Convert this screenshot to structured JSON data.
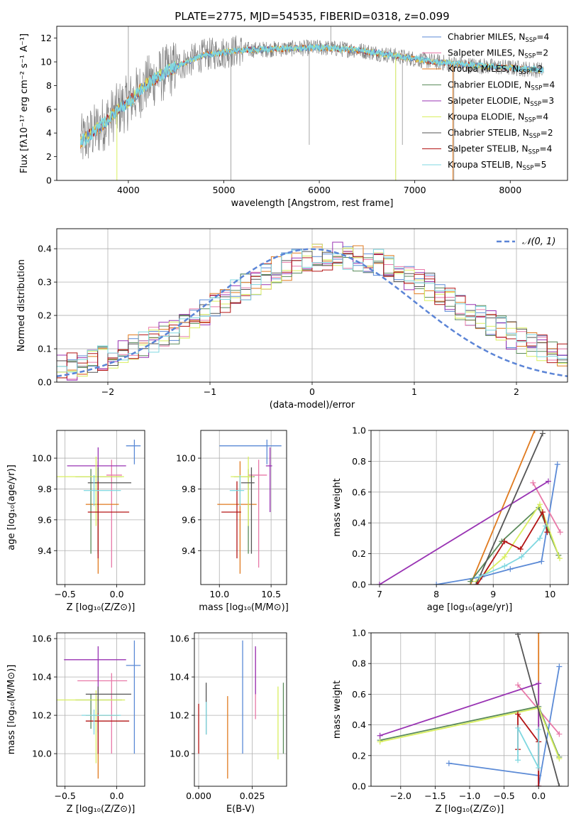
{
  "page": {
    "title": "PLATE=2775, MJD=54535, FIBERID=0318, z=0.099"
  },
  "colors": {
    "chabrier_miles": "#5b8ad6",
    "salpeter_miles": "#e879a8",
    "kroupa_miles": "#e07a1f",
    "chabrier_elodie": "#5a8a5a",
    "salpeter_elodie": "#9933b3",
    "kroupa_elodie": "#d9ef5f",
    "chabrier_stelib": "#555555",
    "salpeter_stelib": "#b31414",
    "kroupa_stelib": "#7fd7e0",
    "data": "#808080",
    "normal": "#5b84d6"
  },
  "chart_data": [
    {
      "id": "spectrum",
      "type": "line",
      "title": "PLATE=2775, MJD=54535, FIBERID=0318, z=0.099",
      "xlabel": "wavelength [Angstrom, rest frame]",
      "ylabel": "Flux [fλ10⁻¹⁷ erg cm⁻² s⁻¹ A⁻¹]",
      "xlim": [
        3250,
        8600
      ],
      "ylim": [
        0,
        13
      ],
      "xticks": [
        4000,
        5000,
        6000,
        7000,
        8000
      ],
      "yticks": [
        0,
        2,
        4,
        6,
        8,
        10,
        12
      ],
      "continuum": [
        [
          3500,
          3.2
        ],
        [
          3700,
          4.5
        ],
        [
          3900,
          6.0
        ],
        [
          4000,
          6.6
        ],
        [
          4200,
          8.2
        ],
        [
          4500,
          9.6
        ],
        [
          4800,
          10.6
        ],
        [
          5200,
          11.0
        ],
        [
          5600,
          11.1
        ],
        [
          6000,
          11.2
        ],
        [
          6400,
          11.0
        ],
        [
          6800,
          10.5
        ],
        [
          7200,
          10.0
        ],
        [
          7600,
          9.7
        ],
        [
          8000,
          9.5
        ],
        [
          8350,
          9.3
        ]
      ],
      "legend": [
        {
          "label": "Chabrier MILES, N",
          "sub": "SSP",
          "suffix": "=4",
          "color_key": "chabrier_miles"
        },
        {
          "label": "Salpeter MILES, N",
          "sub": "SSP",
          "suffix": "=2",
          "color_key": "salpeter_miles"
        },
        {
          "label": "Kroupa MILES, N",
          "sub": "SSP",
          "suffix": "=2",
          "color_key": "kroupa_miles"
        },
        {
          "label": "Chabrier ELODIE, N",
          "sub": "SSP",
          "suffix": "=4",
          "color_key": "chabrier_elodie"
        },
        {
          "label": "Salpeter ELODIE, N",
          "sub": "SSP",
          "suffix": "=3",
          "color_key": "salpeter_elodie"
        },
        {
          "label": "Kroupa ELODIE, N",
          "sub": "SSP",
          "suffix": "=4",
          "color_key": "kroupa_elodie"
        },
        {
          "label": "Chabrier STELIB, N",
          "sub": "SSP",
          "suffix": "=2",
          "color_key": "chabrier_stelib"
        },
        {
          "label": "Salpeter STELIB, N",
          "sub": "SSP",
          "suffix": "=4",
          "color_key": "salpeter_stelib"
        },
        {
          "label": "Kroupa STELIB, N",
          "sub": "SSP",
          "suffix": "=5",
          "color_key": "kroupa_stelib"
        }
      ]
    },
    {
      "id": "residuals",
      "type": "line",
      "xlabel": "(data-model)/error",
      "ylabel": "Normed distribution",
      "xlim": [
        -2.5,
        2.5
      ],
      "ylim": [
        0,
        0.46
      ],
      "xticks": [
        -2,
        -1,
        0,
        1,
        2
      ],
      "yticks": [
        0.0,
        0.1,
        0.2,
        0.3,
        0.4
      ],
      "bin_width": 0.1,
      "legend_label": "𝒩(0, 1)",
      "grid": true
    },
    {
      "id": "age_vs_Z",
      "type": "scatter",
      "xlabel": "Z [log₁₀(Z/Z⊙)]",
      "ylabel": "age  [log₁₀(age/yr)]",
      "xlim": [
        -0.58,
        0.27
      ],
      "ylim": [
        9.18,
        10.18
      ],
      "xticks": [
        -0.5,
        0.0
      ],
      "yticks": [
        9.4,
        9.6,
        9.8,
        10.0
      ],
      "points": [
        {
          "model": "chabrier_miles",
          "x": 0.17,
          "y": 10.08,
          "xerr": [
            0.08,
            0.06
          ],
          "yerr": [
            0.12,
            0.04
          ]
        },
        {
          "model": "salpeter_miles",
          "x": -0.05,
          "y": 9.89,
          "xerr": [
            0.05,
            0.1
          ],
          "yerr": [
            0.6,
            0.1
          ]
        },
        {
          "model": "kroupa_miles",
          "x": -0.18,
          "y": 9.7,
          "xerr": [
            0.12,
            0.2
          ],
          "yerr": [
            0.45,
            0.28
          ]
        },
        {
          "model": "chabrier_elodie",
          "x": -0.25,
          "y": 9.88,
          "xerr": [
            0.15,
            0.3
          ],
          "yerr": [
            0.5,
            0.05
          ]
        },
        {
          "model": "salpeter_elodie",
          "x": -0.18,
          "y": 9.95,
          "xerr": [
            0.3,
            0.27
          ],
          "yerr": [
            0.25,
            0.12
          ]
        },
        {
          "model": "kroupa_elodie",
          "x": -0.2,
          "y": 9.88,
          "xerr": [
            0.38,
            0.27
          ],
          "yerr": [
            0.32,
            0.13
          ]
        },
        {
          "model": "chabrier_stelib",
          "x": -0.18,
          "y": 9.84,
          "xerr": [
            0.1,
            0.32
          ],
          "yerr": [
            0.46,
            0.1
          ]
        },
        {
          "model": "salpeter_stelib",
          "x": -0.18,
          "y": 9.65,
          "xerr": [
            0.1,
            0.3
          ],
          "yerr": [
            0.3,
            0.2
          ]
        },
        {
          "model": "kroupa_stelib",
          "x": -0.22,
          "y": 9.79,
          "xerr": [
            0.1,
            0.26
          ],
          "yerr": [
            0.1,
            0.1
          ]
        }
      ]
    },
    {
      "id": "age_vs_mass",
      "type": "scatter",
      "xlabel": "mass [log₁₀(M/M⊙)]",
      "xlim": [
        9.82,
        10.65
      ],
      "ylim": [
        9.18,
        10.18
      ],
      "xticks": [
        10.0,
        10.5
      ],
      "yticks": [
        9.4,
        9.6,
        9.8,
        10.0
      ],
      "points": [
        {
          "model": "chabrier_miles",
          "x": 10.46,
          "y": 10.08,
          "xerr": [
            0.46,
            0.14
          ],
          "yerr": [
            0.12,
            0.04
          ]
        },
        {
          "model": "salpeter_miles",
          "x": 10.38,
          "y": 9.89,
          "xerr": [
            0.1,
            0.08
          ],
          "yerr": [
            0.6,
            0.1
          ]
        },
        {
          "model": "kroupa_miles",
          "x": 10.2,
          "y": 9.7,
          "xerr": [
            0.22,
            0.16
          ],
          "yerr": [
            0.45,
            0.28
          ]
        },
        {
          "model": "chabrier_elodie",
          "x": 10.28,
          "y": 9.88,
          "xerr": [
            0.14,
            0.06
          ],
          "yerr": [
            0.5,
            0.05
          ]
        },
        {
          "model": "salpeter_elodie",
          "x": 10.49,
          "y": 9.95,
          "xerr": [
            0.04,
            0.02
          ],
          "yerr": [
            0.3,
            0.12
          ]
        },
        {
          "model": "kroupa_elodie",
          "x": 10.28,
          "y": 9.88,
          "xerr": [
            0.17,
            0.05
          ],
          "yerr": [
            0.32,
            0.13
          ]
        },
        {
          "model": "chabrier_stelib",
          "x": 10.31,
          "y": 9.84,
          "xerr": [
            0.1,
            0.03
          ],
          "yerr": [
            0.46,
            0.1
          ]
        },
        {
          "model": "salpeter_stelib",
          "x": 10.17,
          "y": 9.65,
          "xerr": [
            0.15,
            0.04
          ],
          "yerr": [
            0.3,
            0.2
          ]
        },
        {
          "model": "kroupa_stelib",
          "x": 10.2,
          "y": 9.79,
          "xerr": [
            0.1,
            0.04
          ],
          "yerr": [
            0.1,
            0.1
          ]
        }
      ]
    },
    {
      "id": "weight_vs_age",
      "type": "line",
      "xlabel": "age  [log₁₀(age/yr)]",
      "ylabel": "mass weight",
      "xlim": [
        6.85,
        10.32
      ],
      "ylim": [
        0,
        1
      ],
      "xticks": [
        7,
        8,
        9,
        10
      ],
      "yticks": [
        0.0,
        0.2,
        0.4,
        0.6,
        0.8,
        1.0
      ],
      "grid": true,
      "series": [
        {
          "model": "chabrier_miles",
          "points": [
            [
              8.0,
              0.0
            ],
            [
              8.8,
              0.05
            ],
            [
              9.3,
              0.1
            ],
            [
              9.85,
              0.15
            ],
            [
              10.13,
              0.78
            ]
          ]
        },
        {
          "model": "salpeter_miles",
          "points": [
            [
              9.7,
              0.66
            ],
            [
              10.18,
              0.34
            ]
          ]
        },
        {
          "model": "kroupa_miles",
          "points": [
            [
              8.6,
              0.0
            ],
            [
              9.73,
              1.0
            ]
          ]
        },
        {
          "model": "chabrier_elodie",
          "points": [
            [
              8.6,
              0.02
            ],
            [
              9.15,
              0.28
            ],
            [
              9.8,
              0.5
            ],
            [
              10.15,
              0.19
            ]
          ]
        },
        {
          "model": "salpeter_elodie",
          "points": [
            [
              7.0,
              0.0
            ],
            [
              9.97,
              0.67
            ]
          ]
        },
        {
          "model": "kroupa_elodie",
          "points": [
            [
              8.7,
              0.02
            ],
            [
              9.2,
              0.18
            ],
            [
              9.82,
              0.52
            ],
            [
              10.17,
              0.17
            ]
          ]
        },
        {
          "model": "chabrier_stelib",
          "points": [
            [
              8.7,
              0.0
            ],
            [
              9.87,
              0.98
            ]
          ]
        },
        {
          "model": "salpeter_stelib",
          "points": [
            [
              8.72,
              0.0
            ],
            [
              9.2,
              0.28
            ],
            [
              9.48,
              0.23
            ],
            [
              9.87,
              0.47
            ],
            [
              9.95,
              0.34
            ]
          ]
        },
        {
          "model": "kroupa_stelib",
          "points": [
            [
              8.75,
              0.05
            ],
            [
              9.2,
              0.12
            ],
            [
              9.5,
              0.18
            ],
            [
              9.82,
              0.3
            ],
            [
              9.92,
              0.38
            ]
          ]
        }
      ]
    },
    {
      "id": "mass_vs_Z",
      "type": "scatter",
      "xlabel": "Z [log₁₀(Z/Z⊙)]",
      "ylabel": "mass [log₁₀(M/M⊙)]",
      "xlim": [
        -0.58,
        0.27
      ],
      "ylim": [
        9.83,
        10.63
      ],
      "xticks": [
        -0.5,
        0.0
      ],
      "yticks": [
        10.0,
        10.2,
        10.4,
        10.6
      ],
      "points": [
        {
          "model": "chabrier_miles",
          "x": 0.17,
          "y": 10.46,
          "xerr": [
            0.08,
            0.06
          ],
          "yerr": [
            0.46,
            0.13
          ]
        },
        {
          "model": "salpeter_miles",
          "x": -0.05,
          "y": 10.38,
          "xerr": [
            0.33,
            0.15
          ],
          "yerr": [
            0.38,
            0.04
          ]
        },
        {
          "model": "kroupa_miles",
          "x": -0.18,
          "y": 10.2,
          "xerr": [
            0.12,
            0.2
          ],
          "yerr": [
            0.33,
            0.1
          ]
        },
        {
          "model": "chabrier_elodie",
          "x": -0.25,
          "y": 10.28,
          "xerr": [
            0.15,
            0.3
          ],
          "yerr": [
            0.15,
            0.03
          ]
        },
        {
          "model": "salpeter_elodie",
          "x": -0.18,
          "y": 10.49,
          "xerr": [
            0.33,
            0.27
          ],
          "yerr": [
            0.18,
            0.07
          ]
        },
        {
          "model": "kroupa_elodie",
          "x": -0.2,
          "y": 10.28,
          "xerr": [
            0.4,
            0.28
          ],
          "yerr": [
            0.33,
            0.05
          ]
        },
        {
          "model": "chabrier_stelib",
          "x": -0.18,
          "y": 10.31,
          "xerr": [
            0.12,
            0.32
          ],
          "yerr": [
            0.2,
            0.04
          ]
        },
        {
          "model": "salpeter_stelib",
          "x": -0.18,
          "y": 10.17,
          "xerr": [
            0.12,
            0.3
          ],
          "yerr": [
            0.17,
            0.04
          ]
        },
        {
          "model": "kroupa_stelib",
          "x": -0.22,
          "y": 10.2,
          "xerr": [
            0.12,
            0.26
          ],
          "yerr": [
            0.1,
            0.03
          ]
        }
      ]
    },
    {
      "id": "mass_vs_ebv",
      "type": "scatter",
      "xlabel": "E(B-V)",
      "xlim": [
        -0.002,
        0.041
      ],
      "ylim": [
        9.83,
        10.63
      ],
      "xticks": [
        0.0,
        0.025
      ],
      "xtick_labels": [
        "0.000",
        "0.025"
      ],
      "yticks": [
        10.0,
        10.2,
        10.4,
        10.6
      ],
      "points": [
        {
          "model": "chabrier_miles",
          "x": 0.0205,
          "y": 10.46,
          "yerr": [
            0.46,
            0.13
          ]
        },
        {
          "model": "salpeter_miles",
          "x": 0.0265,
          "y": 10.38,
          "yerr": [
            0.2,
            0.17
          ]
        },
        {
          "model": "kroupa_miles",
          "x": 0.0135,
          "y": 10.2,
          "yerr": [
            0.33,
            0.1
          ]
        },
        {
          "model": "chabrier_elodie",
          "x": 0.0395,
          "y": 10.28,
          "yerr": [
            0.28,
            0.09
          ]
        },
        {
          "model": "salpeter_elodie",
          "x": 0.0265,
          "y": 10.49,
          "yerr": [
            0.18,
            0.07
          ]
        },
        {
          "model": "kroupa_elodie",
          "x": 0.037,
          "y": 10.2,
          "yerr": [
            0.23,
            0.15
          ]
        },
        {
          "model": "chabrier_stelib",
          "x": 0.0035,
          "y": 10.22,
          "yerr": [
            0.12,
            0.15
          ]
        },
        {
          "model": "salpeter_stelib",
          "x": 0.0,
          "y": 10.13,
          "yerr": [
            0.13,
            0.13
          ]
        },
        {
          "model": "kroupa_stelib",
          "x": 0.0035,
          "y": 10.15,
          "yerr": [
            0.05,
            0.12
          ]
        }
      ]
    },
    {
      "id": "weight_vs_Z",
      "type": "line",
      "xlabel": "Z [log₁₀(Z/Z⊙)]",
      "ylabel": "mass weight",
      "xlim": [
        -2.43,
        0.43
      ],
      "ylim": [
        0,
        1
      ],
      "xticks": [
        -2.0,
        -1.5,
        -1.0,
        -0.5,
        0.0
      ],
      "yticks": [
        0.0,
        0.2,
        0.4,
        0.6,
        0.8,
        1.0
      ],
      "grid": true,
      "series": [
        {
          "model": "chabrier_miles",
          "points": [
            [
              -1.3,
              0.15
            ],
            [
              0.0,
              0.07
            ],
            [
              0.0,
              0.0
            ],
            [
              0.3,
              0.78
            ]
          ]
        },
        {
          "model": "salpeter_miles",
          "points": [
            [
              -0.3,
              0.66
            ],
            [
              0.3,
              0.34
            ]
          ]
        },
        {
          "model": "kroupa_miles",
          "points": [
            [
              0.0,
              0.0
            ],
            [
              0.0,
              1.0
            ]
          ]
        },
        {
          "model": "chabrier_elodie",
          "points": [
            [
              -2.3,
              0.3
            ],
            [
              0.0,
              0.52
            ],
            [
              0.3,
              0.19
            ]
          ]
        },
        {
          "model": "salpeter_elodie",
          "points": [
            [
              -2.3,
              0.33
            ],
            [
              0.0,
              0.67
            ],
            [
              0.0,
              0.0
            ]
          ]
        },
        {
          "model": "kroupa_elodie",
          "points": [
            [
              -2.3,
              0.29
            ],
            [
              0.0,
              0.51
            ],
            [
              0.3,
              0.18
            ]
          ]
        },
        {
          "model": "chabrier_stelib",
          "points": [
            [
              -0.3,
              0.99
            ],
            [
              0.3,
              0.0
            ]
          ]
        },
        {
          "model": "salpeter_stelib",
          "points": [
            [
              -0.3,
              0.24
            ],
            [
              -0.3,
              0.47
            ],
            [
              0.0,
              0.29
            ],
            [
              0.0,
              0.0
            ]
          ]
        },
        {
          "model": "kroupa_stelib",
          "points": [
            [
              -0.3,
              0.17
            ],
            [
              -0.3,
              0.38
            ],
            [
              0.0,
              0.12
            ],
            [
              0.0,
              0.37
            ]
          ]
        }
      ]
    }
  ]
}
